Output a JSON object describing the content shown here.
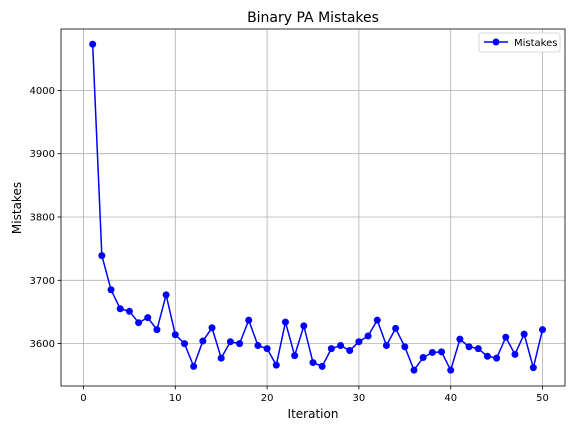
{
  "chart_data": {
    "type": "line",
    "title": "Binary PA Mistakes",
    "xlabel": "Iteration",
    "ylabel": "Mistakes",
    "xlim": [
      -2.45,
      52.45
    ],
    "ylim": [
      3533,
      4097
    ],
    "xticks": [
      0,
      10,
      20,
      30,
      40,
      50
    ],
    "yticks": [
      3600,
      3700,
      3800,
      3900,
      4000
    ],
    "grid": true,
    "legend_position": "top-right",
    "series": [
      {
        "name": "Mistakes",
        "color": "#0000ff",
        "marker": "circle",
        "x": [
          1,
          2,
          3,
          4,
          5,
          6,
          7,
          8,
          9,
          10,
          11,
          12,
          13,
          14,
          15,
          16,
          17,
          18,
          19,
          20,
          21,
          22,
          23,
          24,
          25,
          26,
          27,
          28,
          29,
          30,
          31,
          32,
          33,
          34,
          35,
          36,
          37,
          38,
          39,
          40,
          41,
          42,
          43,
          44,
          45,
          46,
          47,
          48,
          49,
          50
        ],
        "y": [
          4073,
          3739,
          3685,
          3655,
          3651,
          3633,
          3641,
          3622,
          3677,
          3614,
          3600,
          3564,
          3604,
          3625,
          3577,
          3603,
          3600,
          3637,
          3597,
          3592,
          3566,
          3634,
          3581,
          3628,
          3570,
          3564,
          3592,
          3597,
          3589,
          3603,
          3612,
          3637,
          3597,
          3624,
          3595,
          3558,
          3578,
          3586,
          3587,
          3558,
          3607,
          3595,
          3592,
          3580,
          3577,
          3610,
          3583,
          3615,
          3562,
          3622
        ]
      }
    ]
  }
}
